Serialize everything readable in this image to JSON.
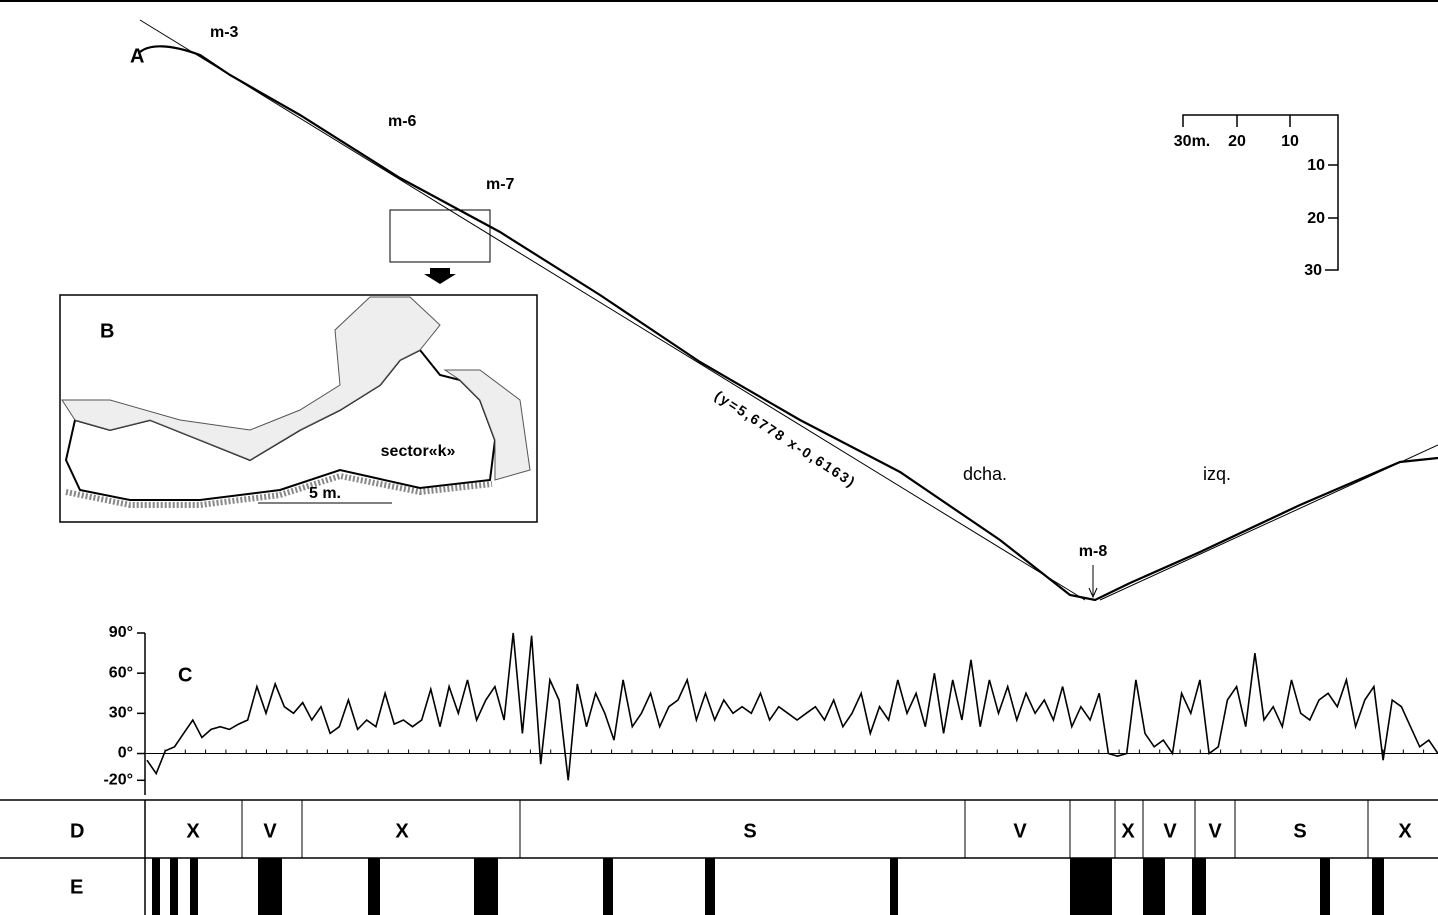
{
  "profile": {
    "label": "A",
    "marks": [
      "m-3",
      "m-6",
      "m-7",
      "m-8"
    ],
    "equation": "(y=5,6778 x-0,6163)",
    "sides": [
      "dcha.",
      "izq."
    ],
    "scale": {
      "horizontal": [
        "30m.",
        "20",
        "10"
      ],
      "vertical": [
        "10",
        "20",
        "30"
      ]
    }
  },
  "inset": {
    "label": "B",
    "sector": "sector«k»",
    "scale": "5 m."
  },
  "chart_data": {
    "type": "line",
    "label": "C",
    "color": "#000000",
    "values": [
      -5,
      -15,
      2,
      5,
      15,
      25,
      12,
      18,
      20,
      18,
      22,
      25,
      50,
      30,
      52,
      35,
      30,
      38,
      25,
      35,
      15,
      20,
      40,
      18,
      25,
      20,
      45,
      22,
      25,
      20,
      25,
      48,
      20,
      50,
      30,
      55,
      25,
      40,
      50,
      25,
      90,
      15,
      88,
      -8,
      55,
      40,
      -20,
      52,
      20,
      45,
      30,
      10,
      55,
      20,
      30,
      45,
      20,
      35,
      40,
      55,
      25,
      45,
      25,
      40,
      30,
      35,
      30,
      45,
      25,
      35,
      30,
      25,
      30,
      35,
      25,
      40,
      20,
      30,
      45,
      15,
      35,
      25,
      55,
      30,
      45,
      20,
      60,
      15,
      55,
      25,
      70,
      20,
      55,
      30,
      50,
      25,
      45,
      30,
      40,
      25,
      50,
      20,
      35,
      25,
      45,
      0,
      -2,
      0,
      55,
      15,
      5,
      10,
      0,
      45,
      30,
      55,
      0,
      5,
      40,
      50,
      20,
      75,
      25,
      35,
      20,
      55,
      30,
      25,
      40,
      45,
      35,
      55,
      20,
      40,
      50,
      -5,
      40,
      35,
      20,
      5,
      10,
      0
    ],
    "ylim": [
      -25,
      90
    ],
    "yticks": [
      {
        "value": 90,
        "label": "90°"
      },
      {
        "value": 60,
        "label": "60°"
      },
      {
        "value": 30,
        "label": "30°"
      },
      {
        "value": 0,
        "label": "0°"
      },
      {
        "value": -20,
        "label": "-20°"
      }
    ]
  },
  "rows": {
    "d": {
      "label": "D",
      "segments": [
        "X",
        "V",
        "X",
        "S",
        "V",
        "X",
        "V",
        "V",
        "S",
        "X"
      ]
    },
    "e": {
      "label": "E"
    }
  }
}
